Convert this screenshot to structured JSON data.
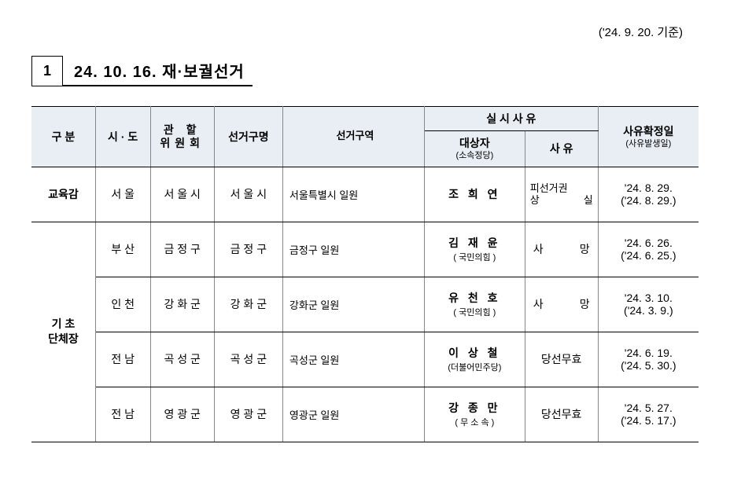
{
  "ref_date": "('24. 9. 20. 기준)",
  "section": {
    "num": "1",
    "title": "24. 10. 16. 재·보궐선거"
  },
  "headers": {
    "gubun": "구   분",
    "sido": "시 · 도",
    "gwan_l1": "관   할",
    "gwan_l2": "위원회",
    "name": "선거구명",
    "area": "선거구역",
    "cause_group": "실   시   사   유",
    "target": "대상자",
    "target_sub": "(소속정당)",
    "reason": "사   유",
    "date": "사유확정일",
    "date_sub": "(사유발생일)"
  },
  "rows": [
    {
      "gubun": "교육감",
      "sido": "서  울",
      "gwan": "서 울 시",
      "name": "서 울 시",
      "area": "서울특별시 일원",
      "target": "조  희  연",
      "party": "",
      "reason_l1a": "피선거권",
      "reason_l1b": "",
      "reason_l2a": "상",
      "reason_l2b": "실",
      "date_main": "'24. 8. 29.",
      "date_sub": "('24. 8. 29.)"
    },
    {
      "gubun": "기   초\n단체장",
      "sido": "부  산",
      "gwan": "금 정 구",
      "name": "금 정 구",
      "area": "금정구 일원",
      "target": "김  재  윤",
      "party": "( 국민의힘 )",
      "reason_a": "사",
      "reason_b": "망",
      "date_main": "'24. 6. 26.",
      "date_sub": "('24. 6. 25.)"
    },
    {
      "sido": "인  천",
      "gwan": "강 화 군",
      "name": "강 화 군",
      "area": "강화군 일원",
      "target": "유  천  호",
      "party": "( 국민의힘 )",
      "reason_a": "사",
      "reason_b": "망",
      "date_main": "'24. 3. 10.",
      "date_sub": "('24. 3. 9.)"
    },
    {
      "sido": "전  남",
      "gwan": "곡 성 군",
      "name": "곡 성 군",
      "area": "곡성군 일원",
      "target": "이  상  철",
      "party": "(더불어민주당)",
      "reason": "당선무효",
      "date_main": "'24. 6. 19.",
      "date_sub": "('24. 5. 30.)"
    },
    {
      "sido": "전  남",
      "gwan": "영 광 군",
      "name": "영 광 군",
      "area": "영광군 일원",
      "target": "강  종  만",
      "party": "( 무 소 속 )",
      "reason": "당선무효",
      "date_main": "'24. 5. 27.",
      "date_sub": "('24. 5. 17.)"
    }
  ]
}
